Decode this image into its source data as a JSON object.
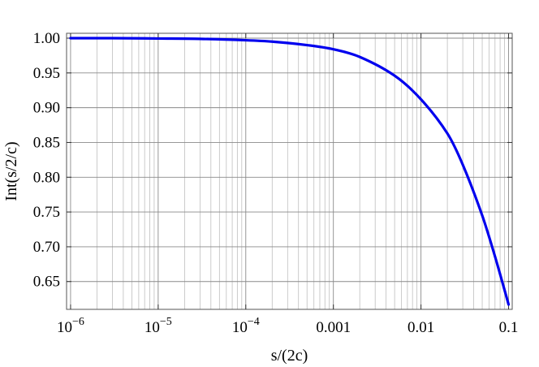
{
  "chart_data": {
    "type": "line",
    "title": "",
    "xlabel": "s/(2c)",
    "ylabel": "Int(s/2/c)",
    "xscale": "log",
    "xlim": [
      9e-07,
      0.11
    ],
    "ylim": [
      0.61,
      1.007
    ],
    "grid": "on",
    "x_ticks": [
      {
        "value": 1e-06,
        "base": "10",
        "exp": "−6"
      },
      {
        "value": 1e-05,
        "base": "10",
        "exp": "−5"
      },
      {
        "value": 0.0001,
        "base": "10",
        "exp": "−4"
      },
      {
        "value": 0.001,
        "label": "0.001"
      },
      {
        "value": 0.01,
        "label": "0.01"
      },
      {
        "value": 0.1,
        "label": "0.1"
      }
    ],
    "y_ticks": [
      {
        "value": 0.65,
        "label": "0.65"
      },
      {
        "value": 0.7,
        "label": "0.70"
      },
      {
        "value": 0.75,
        "label": "0.75"
      },
      {
        "value": 0.8,
        "label": "0.80"
      },
      {
        "value": 0.85,
        "label": "0.85"
      },
      {
        "value": 0.9,
        "label": "0.90"
      },
      {
        "value": 0.95,
        "label": "0.95"
      },
      {
        "value": 1.0,
        "label": "1.00"
      }
    ],
    "series": [
      {
        "color": "#0000ee",
        "points": [
          {
            "x": 1e-06,
            "y": 1.0
          },
          {
            "x": 3e-06,
            "y": 1.0
          },
          {
            "x": 1e-05,
            "y": 0.9995
          },
          {
            "x": 3e-05,
            "y": 0.999
          },
          {
            "x": 0.0001,
            "y": 0.997
          },
          {
            "x": 0.0002,
            "y": 0.995
          },
          {
            "x": 0.0005,
            "y": 0.99
          },
          {
            "x": 0.001,
            "y": 0.984
          },
          {
            "x": 0.002,
            "y": 0.973
          },
          {
            "x": 0.005,
            "y": 0.946
          },
          {
            "x": 0.01,
            "y": 0.912
          },
          {
            "x": 0.02,
            "y": 0.863
          },
          {
            "x": 0.03,
            "y": 0.818
          },
          {
            "x": 0.05,
            "y": 0.745
          },
          {
            "x": 0.07,
            "y": 0.686
          },
          {
            "x": 0.1,
            "y": 0.617
          }
        ]
      }
    ]
  }
}
